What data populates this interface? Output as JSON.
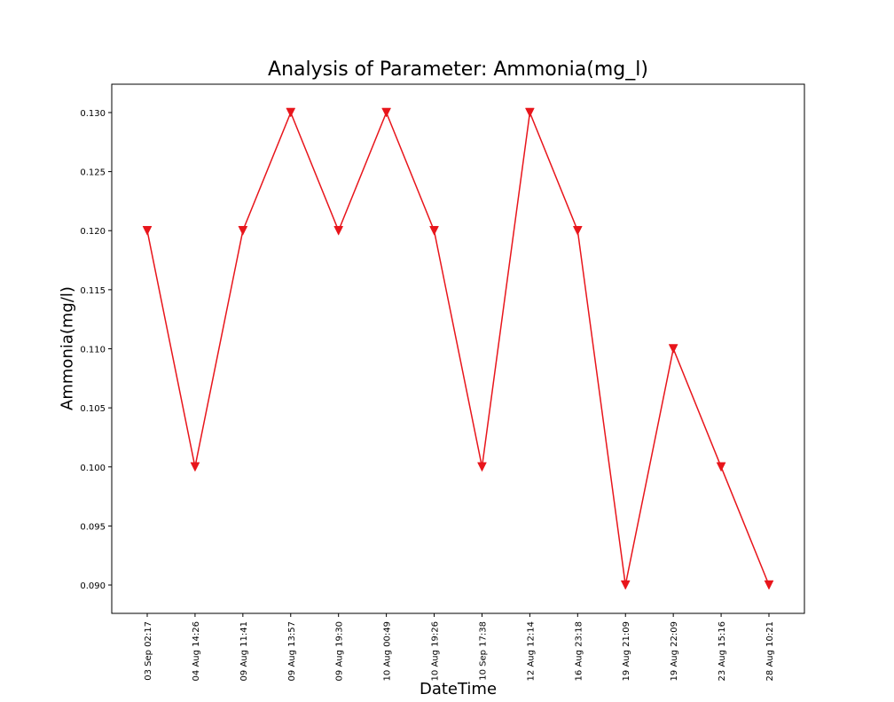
{
  "chart_data": {
    "type": "line",
    "title": "Analysis of Parameter: Ammonia(mg_l)",
    "xlabel": "DateTime",
    "ylabel": "Ammonia(mg/l)",
    "categories": [
      "03 Sep 02:17",
      "04 Aug 14:26",
      "09 Aug 11:41",
      "09 Aug 13:57",
      "09 Aug 19:30",
      "10 Aug 00:49",
      "10 Aug 19:26",
      "10 Sep 17:38",
      "12 Aug 12:14",
      "16 Aug 23:18",
      "19 Aug 21:09",
      "19 Aug 22:09",
      "23 Aug 15:16",
      "28 Aug 10:21"
    ],
    "series": [
      {
        "values": [
          0.12,
          0.1,
          0.12,
          0.13,
          0.12,
          0.13,
          0.12,
          0.1,
          0.13,
          0.12,
          0.09,
          0.11,
          0.1,
          0.09
        ]
      }
    ],
    "ylim": [
      0.0876,
      0.1324
    ],
    "yticks": [
      "0.090",
      "0.095",
      "0.100",
      "0.105",
      "0.110",
      "0.115",
      "0.120",
      "0.125",
      "0.130"
    ],
    "grid": false,
    "marker": "triangle-down",
    "line_color": "#e8151b",
    "marker_color": "#e8151b"
  }
}
